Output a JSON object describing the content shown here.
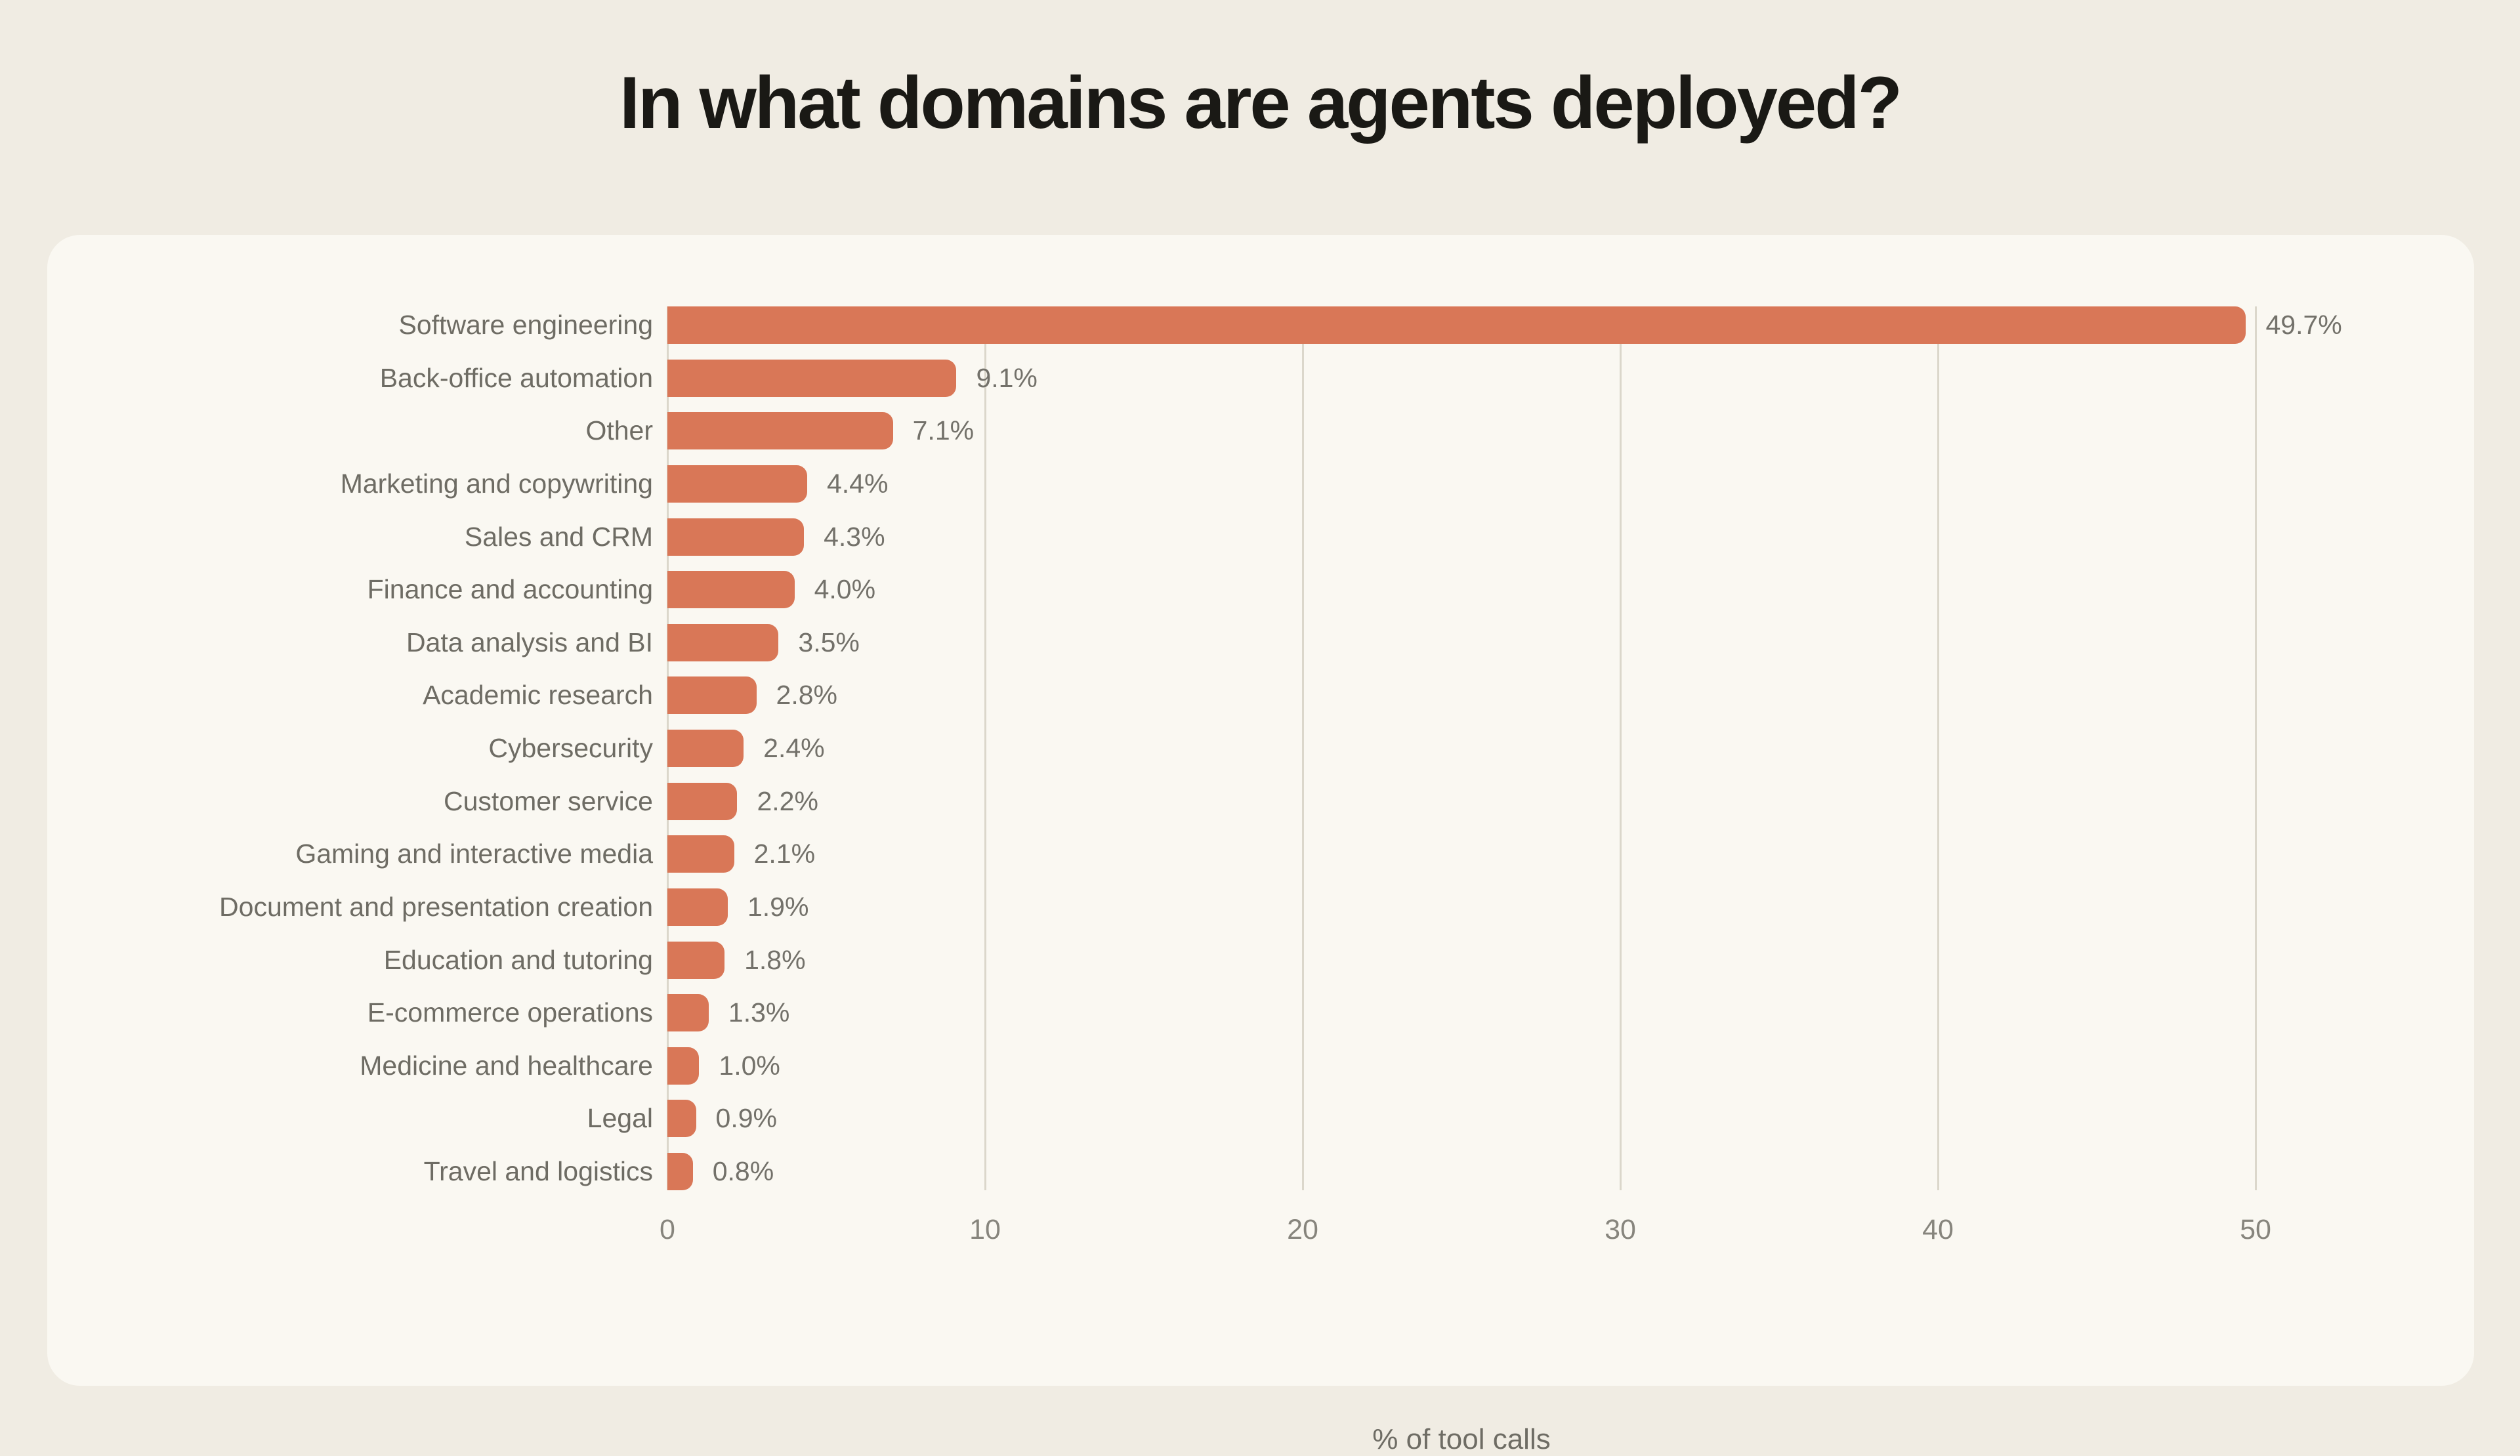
{
  "page": {
    "title": "In what domains are agents deployed?"
  },
  "colors": {
    "background": "#F0ECE3",
    "card": "#FAF8F2",
    "bar": "#D97757",
    "gridline": "#DBD7CB",
    "title_text": "#1A1915",
    "label_text": "#6E6C64",
    "value_text": "#73716A",
    "tick_text": "#87857D"
  },
  "chart_data": {
    "type": "bar",
    "orientation": "horizontal",
    "title": "In what domains are agents deployed?",
    "xlabel": "% of tool calls",
    "x_ticks": [
      0,
      10,
      20,
      30,
      40,
      50
    ],
    "xlim": [
      0,
      51.2
    ],
    "grid": "vertical-gridlines-only",
    "legend": "none",
    "categories": [
      "Software engineering",
      "Back-office automation",
      "Other",
      "Marketing and copywriting",
      "Sales and CRM",
      "Finance and accounting",
      "Data analysis and BI",
      "Academic research",
      "Cybersecurity",
      "Customer service",
      "Gaming and interactive media",
      "Document and presentation creation",
      "Education and tutoring",
      "E-commerce operations",
      "Medicine and healthcare",
      "Legal",
      "Travel and logistics"
    ],
    "values": [
      49.7,
      9.1,
      7.1,
      4.4,
      4.3,
      4.0,
      3.5,
      2.8,
      2.4,
      2.2,
      2.1,
      1.9,
      1.8,
      1.3,
      1.0,
      0.9,
      0.8
    ],
    "value_labels": [
      "49.7%",
      "9.1%",
      "7.1%",
      "4.4%",
      "4.3%",
      "4.0%",
      "3.5%",
      "2.8%",
      "2.4%",
      "2.2%",
      "2.1%",
      "1.9%",
      "1.8%",
      "1.3%",
      "1.0%",
      "0.9%",
      "0.8%"
    ]
  }
}
